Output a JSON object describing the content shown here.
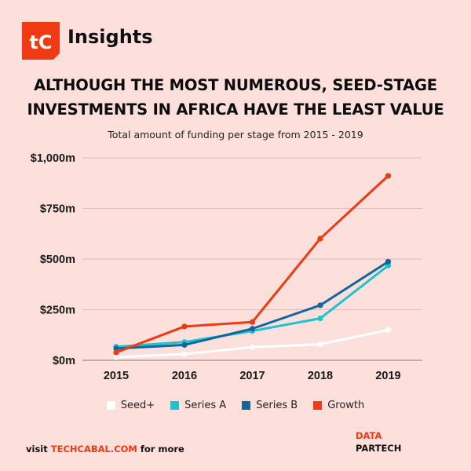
{
  "header": {
    "logo_text": "tC",
    "brand": "Insights"
  },
  "title_lines": [
    "ALTHOUGH THE MOST NUMEROUS, SEED-STAGE",
    "INVESTMENTS IN AFRICA HAVE THE LEAST VALUE"
  ],
  "subtitle": "Total amount of funding per stage from 2015 - 2019",
  "colors": {
    "background": "#fde0dc",
    "accent": "#ef3a14",
    "seed": "#ffffff",
    "series_a": "#1ec3cc",
    "series_b": "#11669e",
    "growth": "#ef3a14",
    "grid": "#e0bdb8",
    "axis": "#b69892"
  },
  "chart_data": {
    "type": "line",
    "title": "ALTHOUGH THE MOST NUMEROUS, SEED-STAGE INVESTMENTS IN AFRICA HAVE THE LEAST VALUE",
    "subtitle": "Total amount of funding per stage from 2015 - 2019",
    "xlabel": "",
    "ylabel": "",
    "x": [
      "2015",
      "2016",
      "2017",
      "2018",
      "2019"
    ],
    "ylim": [
      0,
      1000
    ],
    "yticks": [
      0,
      250,
      500,
      750,
      1000
    ],
    "ytick_labels": [
      "$0m",
      "$250m",
      "$500m",
      "$750m",
      "$1,000m"
    ],
    "grid": true,
    "legend_position": "bottom",
    "series": [
      {
        "name": "Seed+",
        "key": "seed",
        "values": [
          15,
          31,
          65,
          79,
          150
        ]
      },
      {
        "name": "Series A",
        "key": "series_a",
        "values": [
          67,
          90,
          145,
          207,
          468
        ]
      },
      {
        "name": "Series B",
        "key": "series_b",
        "values": [
          58,
          76,
          156,
          272,
          487
        ]
      },
      {
        "name": "Growth",
        "key": "growth",
        "values": [
          39,
          167,
          189,
          601,
          911
        ]
      }
    ]
  },
  "legend": [
    {
      "label": "Seed+",
      "key": "seed"
    },
    {
      "label": "Series A",
      "key": "series_a"
    },
    {
      "label": "Series B",
      "key": "series_b"
    },
    {
      "label": "Growth",
      "key": "growth"
    }
  ],
  "footer": {
    "visit_prefix": "visit",
    "link": "TECHCABAL.COM",
    "visit_suffix": "for more",
    "source_label": "DATA",
    "source_name": "PARTECH"
  }
}
